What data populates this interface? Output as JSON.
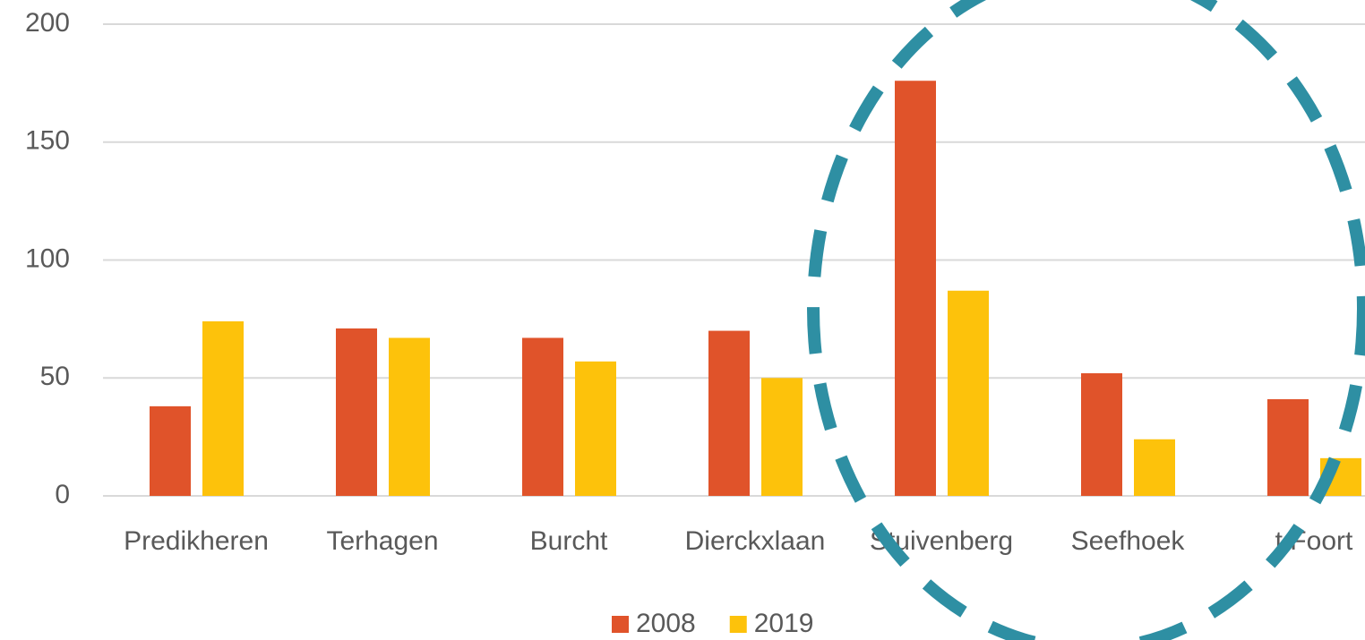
{
  "chart_data": {
    "type": "bar",
    "categories": [
      "Predikheren",
      "Terhagen",
      "Burcht",
      "Dierckxlaan",
      "Stuivenberg",
      "Seefhoek",
      "t Foort"
    ],
    "series": [
      {
        "name": "2008",
        "color": "#e0532a",
        "values": [
          38,
          71,
          67,
          70,
          176,
          52,
          41
        ]
      },
      {
        "name": "2019",
        "color": "#fdc20b",
        "values": [
          74,
          67,
          57,
          50,
          87,
          24,
          16
        ]
      }
    ],
    "ylim": [
      0,
      200
    ],
    "yticks": [
      0,
      50,
      100,
      150,
      200
    ],
    "grid": true,
    "legend": "bottom"
  }
}
